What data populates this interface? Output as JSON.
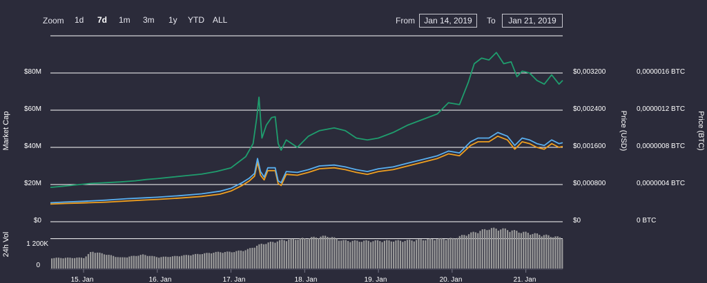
{
  "toolbar": {
    "zoom_label": "Zoom",
    "zoom_buttons": [
      "1d",
      "7d",
      "1m",
      "3m",
      "1y",
      "YTD",
      "ALL"
    ],
    "active_zoom": "7d",
    "from_label": "From",
    "from_value": "Jan 14, 2019",
    "to_label": "To",
    "to_value": "Jan 21, 2019"
  },
  "colors": {
    "background": "#2b2b3a",
    "market_cap": "#1f9e6e",
    "price_usd": "#5ab0f0",
    "price_btc": "#f0a020",
    "volume": "#9a9a9a",
    "grid": "#ffffff"
  },
  "chart_data": [
    {
      "type": "line",
      "x_labels": [
        "15. Jan",
        "16. Jan",
        "17. Jan",
        "18. Jan",
        "19. Jan",
        "20. Jan",
        "21. Jan"
      ],
      "x_ticks": [
        15.0,
        16.0,
        17.0,
        18.0,
        19.0,
        20.0,
        21.0
      ],
      "xlim": [
        14.55,
        21.5
      ],
      "grid": true,
      "axes": {
        "left": {
          "title": "Market Cap",
          "ticks": [
            "$0",
            "$20M",
            "$40M",
            "$60M",
            "$80M"
          ],
          "ylim": [
            0,
            100
          ]
        },
        "right_usd": {
          "title": "Price (USD)",
          "ticks": [
            "$0",
            "$0,000800",
            "$0,001600",
            "$0,002400",
            "$0,003200"
          ]
        },
        "right_btc": {
          "title": "Price (BTC)",
          "ticks": [
            "0 BTC",
            "0,0000004 BTC",
            "0,0000008 BTC",
            "0,0000012 BTC",
            "0,0000016 BTC"
          ]
        }
      },
      "series": [
        {
          "name": "Market Cap",
          "unit": "M USD",
          "color": "#1f9e6e",
          "points": [
            [
              14.55,
              18.5
            ],
            [
              14.7,
              19.0
            ],
            [
              14.9,
              19.8
            ],
            [
              15.1,
              20.6
            ],
            [
              15.3,
              21.0
            ],
            [
              15.5,
              21.4
            ],
            [
              15.7,
              22.0
            ],
            [
              15.85,
              22.7
            ],
            [
              16.0,
              23.2
            ],
            [
              16.2,
              24.0
            ],
            [
              16.4,
              24.8
            ],
            [
              16.6,
              25.6
            ],
            [
              16.8,
              27.0
            ],
            [
              17.0,
              29.0
            ],
            [
              17.1,
              32.0
            ],
            [
              17.2,
              35.0
            ],
            [
              17.3,
              42.0
            ],
            [
              17.35,
              56.0
            ],
            [
              17.38,
              67.0
            ],
            [
              17.42,
              45.0
            ],
            [
              17.48,
              52.0
            ],
            [
              17.55,
              56.0
            ],
            [
              17.6,
              56.5
            ],
            [
              17.64,
              42.0
            ],
            [
              17.68,
              38.5
            ],
            [
              17.75,
              44.0
            ],
            [
              17.9,
              40.0
            ],
            [
              18.05,
              46.0
            ],
            [
              18.2,
              49.0
            ],
            [
              18.4,
              50.5
            ],
            [
              18.55,
              49.0
            ],
            [
              18.7,
              45.0
            ],
            [
              18.85,
              44.0
            ],
            [
              19.0,
              45.0
            ],
            [
              19.2,
              48.0
            ],
            [
              19.4,
              52.0
            ],
            [
              19.6,
              55.0
            ],
            [
              19.8,
              58.0
            ],
            [
              19.95,
              64.0
            ],
            [
              20.1,
              63.0
            ],
            [
              20.22,
              75.0
            ],
            [
              20.3,
              85.0
            ],
            [
              20.4,
              88.0
            ],
            [
              20.5,
              87.0
            ],
            [
              20.6,
              91.0
            ],
            [
              20.7,
              85.0
            ],
            [
              20.8,
              86.0
            ],
            [
              20.88,
              78.0
            ],
            [
              20.95,
              81.0
            ],
            [
              21.05,
              80.0
            ],
            [
              21.15,
              76.0
            ],
            [
              21.25,
              74.0
            ],
            [
              21.35,
              79.0
            ],
            [
              21.45,
              74.0
            ],
            [
              21.5,
              76.0
            ]
          ]
        },
        {
          "name": "Price (USD)",
          "unit": "M USD-equivalent",
          "color": "#5ab0f0",
          "points": [
            [
              14.55,
              10.2
            ],
            [
              14.75,
              10.6
            ],
            [
              15.0,
              11.0
            ],
            [
              15.3,
              11.6
            ],
            [
              15.6,
              12.4
            ],
            [
              15.85,
              12.9
            ],
            [
              16.0,
              13.2
            ],
            [
              16.3,
              14.0
            ],
            [
              16.6,
              15.0
            ],
            [
              16.85,
              16.4
            ],
            [
              17.0,
              18.0
            ],
            [
              17.15,
              21.0
            ],
            [
              17.25,
              23.5
            ],
            [
              17.32,
              26.0
            ],
            [
              17.36,
              34.0
            ],
            [
              17.4,
              27.0
            ],
            [
              17.45,
              24.0
            ],
            [
              17.5,
              29.0
            ],
            [
              17.6,
              29.0
            ],
            [
              17.64,
              22.0
            ],
            [
              17.68,
              21.0
            ],
            [
              17.75,
              27.0
            ],
            [
              17.9,
              26.5
            ],
            [
              18.05,
              28.0
            ],
            [
              18.2,
              30.0
            ],
            [
              18.4,
              30.5
            ],
            [
              18.55,
              29.5
            ],
            [
              18.7,
              28.0
            ],
            [
              18.85,
              27.0
            ],
            [
              19.0,
              28.5
            ],
            [
              19.2,
              29.5
            ],
            [
              19.4,
              31.5
            ],
            [
              19.6,
              33.5
            ],
            [
              19.8,
              35.5
            ],
            [
              19.95,
              38.0
            ],
            [
              20.1,
              37.0
            ],
            [
              20.25,
              43.0
            ],
            [
              20.35,
              45.0
            ],
            [
              20.5,
              45.0
            ],
            [
              20.62,
              48.0
            ],
            [
              20.75,
              46.0
            ],
            [
              20.85,
              41.0
            ],
            [
              20.95,
              45.0
            ],
            [
              21.05,
              44.0
            ],
            [
              21.15,
              42.0
            ],
            [
              21.25,
              41.0
            ],
            [
              21.35,
              44.0
            ],
            [
              21.45,
              42.0
            ],
            [
              21.5,
              42.5
            ]
          ]
        },
        {
          "name": "Price (BTC)",
          "unit": "M USD-equivalent",
          "color": "#f0a020",
          "points": [
            [
              14.55,
              9.5
            ],
            [
              14.75,
              9.8
            ],
            [
              15.0,
              10.1
            ],
            [
              15.3,
              10.5
            ],
            [
              15.6,
              11.2
            ],
            [
              15.85,
              11.7
            ],
            [
              16.0,
              12.0
            ],
            [
              16.3,
              12.7
            ],
            [
              16.6,
              13.6
            ],
            [
              16.85,
              14.8
            ],
            [
              17.0,
              16.5
            ],
            [
              17.15,
              19.5
            ],
            [
              17.25,
              22.0
            ],
            [
              17.32,
              24.5
            ],
            [
              17.36,
              32.0
            ],
            [
              17.4,
              25.0
            ],
            [
              17.45,
              22.5
            ],
            [
              17.5,
              27.5
            ],
            [
              17.6,
              27.5
            ],
            [
              17.64,
              20.5
            ],
            [
              17.68,
              19.5
            ],
            [
              17.75,
              25.5
            ],
            [
              17.9,
              25.0
            ],
            [
              18.05,
              26.5
            ],
            [
              18.2,
              28.5
            ],
            [
              18.4,
              29.0
            ],
            [
              18.55,
              28.0
            ],
            [
              18.7,
              26.5
            ],
            [
              18.85,
              25.5
            ],
            [
              19.0,
              27.0
            ],
            [
              19.2,
              28.0
            ],
            [
              19.4,
              30.0
            ],
            [
              19.6,
              32.0
            ],
            [
              19.8,
              34.0
            ],
            [
              19.95,
              36.5
            ],
            [
              20.1,
              35.5
            ],
            [
              20.25,
              41.0
            ],
            [
              20.35,
              43.0
            ],
            [
              20.5,
              43.0
            ],
            [
              20.62,
              46.0
            ],
            [
              20.75,
              44.0
            ],
            [
              20.85,
              39.0
            ],
            [
              20.95,
              43.0
            ],
            [
              21.05,
              42.0
            ],
            [
              21.15,
              40.0
            ],
            [
              21.25,
              39.0
            ],
            [
              21.35,
              42.0
            ],
            [
              21.45,
              40.0
            ],
            [
              21.5,
              40.5
            ]
          ]
        }
      ]
    },
    {
      "type": "bar",
      "title": "24h Vol",
      "ticks": [
        "0",
        "1 200K"
      ],
      "ylim": [
        0,
        1800
      ],
      "x": [
        14.55,
        15.0,
        15.1,
        15.3,
        15.5,
        15.8,
        16.0,
        16.2,
        16.5,
        16.8,
        17.0,
        17.2,
        17.4,
        17.7,
        18.0,
        18.3,
        18.5,
        18.7,
        19.0,
        19.3,
        19.6,
        19.8,
        20.0,
        20.2,
        20.5,
        20.7,
        20.9,
        21.1,
        21.3,
        21.5
      ],
      "values": [
        420,
        430,
        680,
        560,
        430,
        550,
        450,
        480,
        560,
        650,
        660,
        740,
        970,
        1130,
        1200,
        1290,
        1110,
        1090,
        1100,
        1100,
        1150,
        1180,
        1190,
        1370,
        1590,
        1560,
        1460,
        1380,
        1300,
        1210
      ]
    }
  ],
  "axis_titles": {
    "market_cap": "Market Cap",
    "price_usd": "Price (USD)",
    "price_btc": "Price (BTC)",
    "volume": "24h Vol"
  },
  "left_ticks": [
    "$80M",
    "$60M",
    "$40M",
    "$20M",
    "$0"
  ],
  "usd_ticks": [
    "$0,003200",
    "$0,002400",
    "$0,001600",
    "$0,000800",
    "$0"
  ],
  "btc_ticks": [
    "0,0000016 BTC",
    "0,0000012 BTC",
    "0,0000008 BTC",
    "0,0000004 BTC",
    "0 BTC"
  ],
  "volume_ticks": [
    "1 200K",
    "0"
  ]
}
